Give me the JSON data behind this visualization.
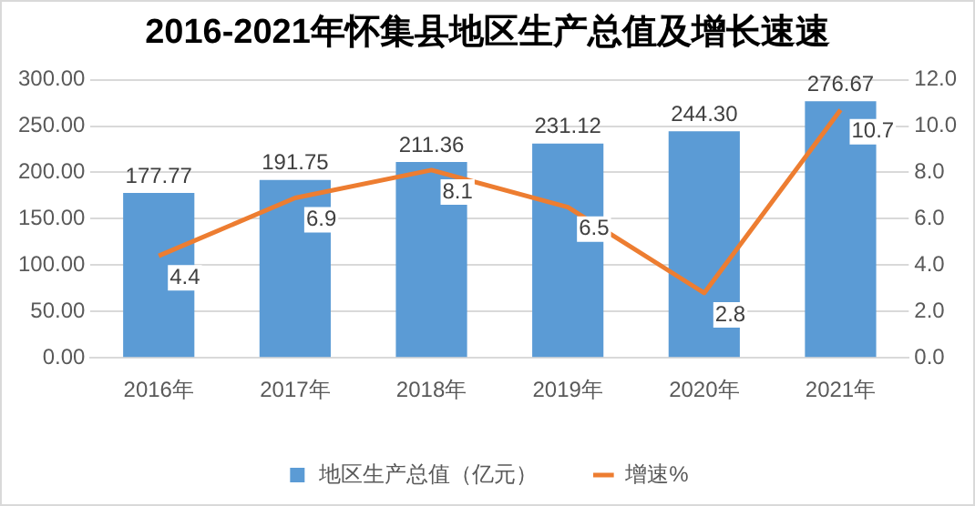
{
  "chart_data": {
    "type": "bar",
    "title": "2016-2021年怀集县地区生产总值及增长速速",
    "categories": [
      "2016年",
      "2017年",
      "2018年",
      "2019年",
      "2020年",
      "2021年"
    ],
    "series": [
      {
        "name": "地区生产总值（亿元）",
        "color": "#5b9bd5",
        "values": [
          177.77,
          191.75,
          211.36,
          231.12,
          244.3,
          276.67
        ],
        "value_labels": [
          "177.77",
          "191.75",
          "211.36",
          "231.12",
          "244.30",
          "276.67"
        ]
      },
      {
        "name": "增速%",
        "type": "line",
        "axis": "y2",
        "color": "#ed7d31",
        "values": [
          4.4,
          6.9,
          8.1,
          6.5,
          2.8,
          10.7
        ],
        "value_labels": [
          "4.4",
          "6.9",
          "8.1",
          "6.5",
          "2.8",
          "10.7"
        ]
      }
    ],
    "ylim": [
      0,
      300
    ],
    "yticks": [
      {
        "value": 0,
        "label": "0.00"
      },
      {
        "value": 50,
        "label": "50.00"
      },
      {
        "value": 100,
        "label": "100.00"
      },
      {
        "value": 150,
        "label": "150.00"
      },
      {
        "value": 200,
        "label": "200.00"
      },
      {
        "value": 250,
        "label": "250.00"
      },
      {
        "value": 300,
        "label": "300.00"
      }
    ],
    "y2lim": [
      0,
      12
    ],
    "y2ticks": [
      {
        "value": 0,
        "label": "0.0"
      },
      {
        "value": 2,
        "label": "2.0"
      },
      {
        "value": 4,
        "label": "4.0"
      },
      {
        "value": 6,
        "label": "6.0"
      },
      {
        "value": 8,
        "label": "8.0"
      },
      {
        "value": 10,
        "label": "10.0"
      },
      {
        "value": 12,
        "label": "12.0"
      }
    ],
    "grid": "y",
    "legend": "bottom",
    "marker": "none",
    "line_style": "solid"
  }
}
